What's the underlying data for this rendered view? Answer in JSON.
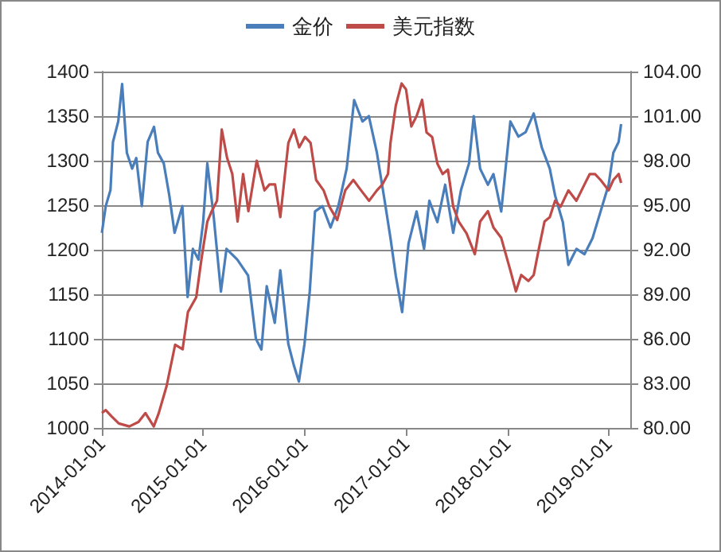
{
  "chart_data": {
    "type": "line",
    "xlim": [
      "2014-01-01",
      "2019-03-20"
    ],
    "xticks": [
      "2014-01-01",
      "2015-01-01",
      "2016-01-01",
      "2017-01-01",
      "2018-01-01",
      "2019-01-01"
    ],
    "ylim": [
      1000,
      1400
    ],
    "yticks": [
      1000,
      1050,
      1100,
      1150,
      1200,
      1250,
      1300,
      1350,
      1400
    ],
    "y2lim": [
      80,
      104
    ],
    "y2ticks": [
      {
        "value": 80,
        "label": "80.00"
      },
      {
        "value": 83,
        "label": "83.00"
      },
      {
        "value": 86,
        "label": "86.00"
      },
      {
        "value": 89,
        "label": "89.00"
      },
      {
        "value": 92,
        "label": "92.00"
      },
      {
        "value": 95,
        "label": "95.00"
      },
      {
        "value": 98,
        "label": "98.00"
      },
      {
        "value": 101,
        "label": "101.00"
      },
      {
        "value": 104,
        "label": "104.00"
      }
    ],
    "grid": "y",
    "legend": "top",
    "marker": "none",
    "line_style": "solid",
    "series": [
      {
        "name": "金价",
        "color": "#4a7ebb",
        "x": [
          "2014-01-01",
          "2014-01-15",
          "2014-02-01",
          "2014-02-10",
          "2014-03-01",
          "2014-03-15",
          "2014-04-01",
          "2014-04-20",
          "2014-05-05",
          "2014-05-25",
          "2014-06-15",
          "2014-07-08",
          "2014-07-22",
          "2014-08-12",
          "2014-09-01",
          "2014-09-20",
          "2014-10-18",
          "2014-11-06",
          "2014-11-25",
          "2014-12-15",
          "2015-01-01",
          "2015-01-16",
          "2015-02-08",
          "2015-03-06",
          "2015-03-26",
          "2015-05-04",
          "2015-06-12",
          "2015-07-10",
          "2015-07-30",
          "2015-08-18",
          "2015-09-16",
          "2015-10-06",
          "2015-11-04",
          "2015-11-24",
          "2015-12-12",
          "2016-01-01",
          "2016-01-20",
          "2016-02-08",
          "2016-03-06",
          "2016-04-04",
          "2016-05-02",
          "2016-06-01",
          "2016-06-28",
          "2016-07-28",
          "2016-08-20",
          "2016-09-18",
          "2016-10-16",
          "2016-11-06",
          "2016-11-25",
          "2016-12-18",
          "2017-01-10",
          "2017-02-08",
          "2017-03-07",
          "2017-03-26",
          "2017-04-24",
          "2017-05-22",
          "2017-06-20",
          "2017-07-18",
          "2017-08-16",
          "2017-09-02",
          "2017-09-25",
          "2017-10-23",
          "2017-11-12",
          "2017-12-10",
          "2018-01-12",
          "2018-02-10",
          "2018-03-08",
          "2018-04-06",
          "2018-05-05",
          "2018-06-03",
          "2018-06-22",
          "2018-07-20",
          "2018-08-09",
          "2018-09-07",
          "2018-10-06",
          "2018-11-04",
          "2018-12-03",
          "2019-01-01",
          "2019-01-18",
          "2019-02-06",
          "2019-02-15"
        ],
        "values": [
          1219,
          1249,
          1267,
          1321,
          1344,
          1386,
          1309,
          1291,
          1303,
          1249,
          1321,
          1338,
          1309,
          1297,
          1261,
          1219,
          1249,
          1147,
          1201,
          1189,
          1231,
          1297,
          1237,
          1153,
          1201,
          1189,
          1171,
          1100,
          1088,
          1159,
          1118,
          1177,
          1094,
          1070,
          1052,
          1094,
          1153,
          1243,
          1249,
          1225,
          1249,
          1291,
          1368,
          1344,
          1350,
          1309,
          1255,
          1213,
          1171,
          1130,
          1207,
          1243,
          1201,
          1255,
          1231,
          1273,
          1219,
          1267,
          1297,
          1350,
          1291,
          1273,
          1285,
          1243,
          1344,
          1327,
          1332,
          1353,
          1315,
          1291,
          1261,
          1231,
          1183,
          1201,
          1195,
          1213,
          1243,
          1273,
          1309,
          1321,
          1341
        ]
      },
      {
        "name": "美元指数",
        "color": "#be4b48",
        "axis": "y2",
        "x": [
          "2014-01-01",
          "2014-01-15",
          "2014-02-04",
          "2014-03-03",
          "2014-04-10",
          "2014-05-13",
          "2014-06-07",
          "2014-07-07",
          "2014-07-25",
          "2014-08-22",
          "2014-09-22",
          "2014-10-19",
          "2014-11-07",
          "2014-12-07",
          "2014-12-26",
          "2015-01-16",
          "2015-02-01",
          "2015-02-20",
          "2015-03-09",
          "2015-03-28",
          "2015-04-16",
          "2015-05-05",
          "2015-05-25",
          "2015-06-13",
          "2015-07-13",
          "2015-08-10",
          "2015-08-28",
          "2015-09-17",
          "2015-10-06",
          "2015-11-04",
          "2015-11-24",
          "2015-12-13",
          "2016-01-03",
          "2016-01-23",
          "2016-02-12",
          "2016-03-10",
          "2016-03-31",
          "2016-04-28",
          "2016-05-27",
          "2016-06-25",
          "2016-07-23",
          "2016-08-21",
          "2016-09-18",
          "2016-10-08",
          "2016-10-28",
          "2016-11-06",
          "2016-11-25",
          "2016-12-16",
          "2017-01-01",
          "2017-01-20",
          "2017-02-08",
          "2017-02-28",
          "2017-03-16",
          "2017-04-05",
          "2017-04-24",
          "2017-05-13",
          "2017-06-01",
          "2017-06-20",
          "2017-07-10",
          "2017-08-07",
          "2017-09-06",
          "2017-09-25",
          "2017-10-23",
          "2017-11-12",
          "2017-12-10",
          "2018-01-12",
          "2018-02-01",
          "2018-02-20",
          "2018-03-18",
          "2018-04-06",
          "2018-04-25",
          "2018-05-15",
          "2018-06-03",
          "2018-06-22",
          "2018-07-12",
          "2018-08-09",
          "2018-09-07",
          "2018-10-06",
          "2018-10-25",
          "2018-11-13",
          "2018-12-03",
          "2019-01-01",
          "2019-01-18",
          "2019-02-06",
          "2019-02-15"
        ],
        "values": [
          81.0,
          81.2,
          80.8,
          80.3,
          80.1,
          80.4,
          81.0,
          80.1,
          81.0,
          82.8,
          85.6,
          85.3,
          87.8,
          88.8,
          91.4,
          93.9,
          94.6,
          95.3,
          100.1,
          98.2,
          97.1,
          93.9,
          97.1,
          94.6,
          98.0,
          96.0,
          96.4,
          96.4,
          94.2,
          99.2,
          100.1,
          98.9,
          99.6,
          99.2,
          96.7,
          96.0,
          94.9,
          94.0,
          96.0,
          96.7,
          96.0,
          95.3,
          96.0,
          96.4,
          97.1,
          99.2,
          101.7,
          103.2,
          102.8,
          100.3,
          101.0,
          102.1,
          99.9,
          99.6,
          97.8,
          97.1,
          97.4,
          94.9,
          93.9,
          93.1,
          91.7,
          93.9,
          94.6,
          93.5,
          92.8,
          90.6,
          89.2,
          90.3,
          89.9,
          90.3,
          92.1,
          93.9,
          94.2,
          95.3,
          94.9,
          96.0,
          95.3,
          96.4,
          97.1,
          97.1,
          96.7,
          96.0,
          96.7,
          97.1,
          96.5
        ]
      }
    ]
  }
}
